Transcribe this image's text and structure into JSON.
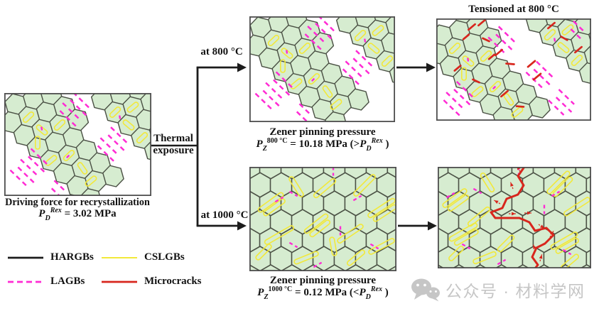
{
  "figure": {
    "left_panel": {
      "caption": "Driving force for recrystallization",
      "formula": {
        "p": "P",
        "sub": "D",
        "sup": "Rex",
        "rest": " = 3.02 MPa"
      }
    },
    "flow": {
      "thermal_1": "Thermal",
      "thermal_2": "exposure",
      "branch_top": "at 800 °C",
      "branch_bottom": "at 1000 °C"
    },
    "top_middle_panel": {
      "caption": "Zener pinning pressure",
      "formula": {
        "p": "P",
        "sub": "Z",
        "sup": "800 °C",
        "mid": " = 10.18 MPa (>",
        "p2": "P",
        "sub2": "D",
        "sup2": "Rex",
        "end": " )"
      }
    },
    "top_right_panel": {
      "title": "Tensioned at 800 °C"
    },
    "bottom_middle_panel": {
      "caption": "Zener pinning pressure",
      "formula": {
        "p": "P",
        "sub": "Z",
        "sup": "1000 °C",
        "mid": " = 0.12 MPa (<",
        "p2": "P",
        "sub2": "D",
        "sup2": "Rex",
        "end": " )"
      }
    }
  },
  "legend": {
    "items": [
      {
        "label": "HARGBs",
        "color_key": "hargb",
        "dashed": false,
        "width": 2.8
      },
      {
        "label": "CSLGBs",
        "color_key": "cslgb",
        "dashed": false,
        "width": 2.0
      },
      {
        "label": "LAGBs",
        "color_key": "lagb",
        "dashed": true,
        "width": 2.8
      },
      {
        "label": "Microcracks",
        "color_key": "microcrack",
        "dashed": false,
        "width": 2.8
      }
    ]
  },
  "watermark": {
    "text": "公众号 · 材料学网",
    "icon": "wechat-icon"
  },
  "colors": {
    "grain_fill": "#d6ecd0",
    "grain_border": "#4a5044",
    "panel_border": "#4f4f4f",
    "hargb": "#1c1c1c",
    "cslgb": "#f2e93a",
    "lagb": "#ff2bd4",
    "microcrack": "#d8261d",
    "text": "#121212",
    "watermark": "#c6c6c6",
    "background": "#ffffff"
  }
}
